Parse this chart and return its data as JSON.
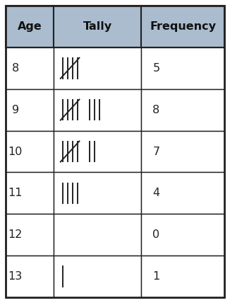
{
  "headers": [
    "Age",
    "Tally",
    "Frequency"
  ],
  "ages": [
    "8",
    "9",
    "10",
    "11",
    "12",
    "13"
  ],
  "frequencies": [
    "5",
    "8",
    "7",
    "4",
    "0",
    "1"
  ],
  "tally_counts": [
    5,
    8,
    7,
    4,
    0,
    1
  ],
  "header_bg": "#aabcce",
  "border_color": "#222222",
  "header_text_color": "#111111",
  "cell_text_color": "#222222",
  "tally_color": "#222222",
  "header_fontsize": 11.5,
  "cell_fontsize": 11.5,
  "n_rows": 6,
  "outer_border_lw": 1.5,
  "inner_border_lw": 1.0
}
